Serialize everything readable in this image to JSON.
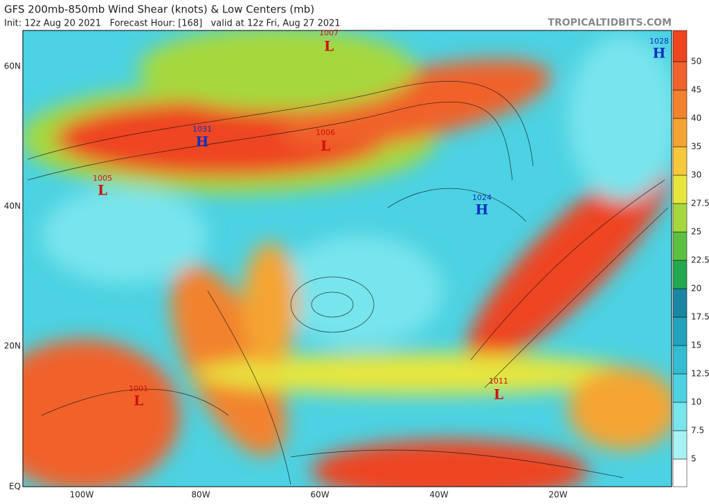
{
  "header": {
    "title": "GFS 200mb-850mb Wind Shear (knots) & Low Centers (mb)",
    "subtitle": "Init: 12z Aug 20 2021   Forecast Hour: [168]   valid at 12z Fri, Aug 27 2021",
    "site": "TROPICALTIDBITS.COM"
  },
  "axes": {
    "lat": [
      "60N",
      "40N",
      "20N",
      "EQ"
    ],
    "lon": [
      "100W",
      "80W",
      "60W",
      "40W",
      "20W"
    ]
  },
  "colorbar": {
    "labels": [
      "5",
      "7.5",
      "10",
      "12.5",
      "15",
      "17.5",
      "20",
      "22.5",
      "25",
      "27.5",
      "30",
      "35",
      "40",
      "45",
      "50"
    ],
    "colors": [
      "#ffffff",
      "#a8f2f4",
      "#78e4ec",
      "#4cd2e2",
      "#34bcd2",
      "#22a2bc",
      "#1a86a4",
      "#22a850",
      "#5cc040",
      "#a6d83e",
      "#e6e63e",
      "#f8c83c",
      "#f4a432",
      "#f2822e",
      "#f0622c",
      "#ee4422"
    ]
  },
  "centers": [
    {
      "kind": "L",
      "pressure": "1007"
    },
    {
      "kind": "H",
      "pressure": "1028"
    },
    {
      "kind": "H",
      "pressure": "1031"
    },
    {
      "kind": "L",
      "pressure": "1006"
    },
    {
      "kind": "L",
      "pressure": "1005"
    },
    {
      "kind": "H",
      "pressure": "1024"
    },
    {
      "kind": "L",
      "pressure": "1011"
    },
    {
      "kind": "L",
      "pressure": "1001"
    }
  ]
}
